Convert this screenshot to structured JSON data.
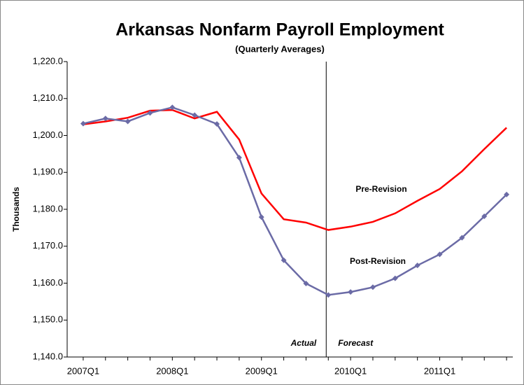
{
  "chart_data": {
    "type": "line",
    "title": "Arkansas Nonfarm Payroll Employment",
    "subtitle": "(Quarterly Averages)",
    "y_label": "Thousands",
    "categories": [
      "2007Q1",
      null,
      null,
      null,
      "2008Q1",
      null,
      null,
      null,
      "2009Q1",
      null,
      null,
      null,
      "2010Q1",
      null,
      null,
      null,
      "2011Q1",
      null,
      null,
      null
    ],
    "series": [
      {
        "name": "Pre-Revision",
        "color": "#ff0000",
        "marker": false,
        "values": [
          1203.0,
          1203.8,
          1204.8,
          1206.7,
          1206.9,
          1204.6,
          1206.4,
          1198.9,
          1184.3,
          1177.3,
          1176.4,
          1174.4,
          1175.3,
          1176.6,
          1178.9,
          1182.3,
          1185.5,
          1190.3,
          1196.3,
          1202.1
        ]
      },
      {
        "name": "Post-Revision",
        "color": "#6b6ba6",
        "marker": true,
        "values": [
          1203.2,
          1204.6,
          1203.8,
          1206.1,
          1207.6,
          1205.5,
          1203.1,
          1194.0,
          1177.9,
          1166.2,
          1159.9,
          1156.8,
          1157.6,
          1158.9,
          1161.3,
          1164.8,
          1167.8,
          1172.3,
          1178.1,
          1184.0
        ]
      }
    ],
    "divider_index": 11,
    "annotations": [
      "Actual",
      "Forecast"
    ],
    "ylim": [
      1140,
      1220
    ],
    "yticks": [
      {
        "value": 1140,
        "label": "1,140.0"
      },
      {
        "value": 1150,
        "label": "1,150.0"
      },
      {
        "value": 1160,
        "label": "1,160.0"
      },
      {
        "value": 1170,
        "label": "1,170.0"
      },
      {
        "value": 1180,
        "label": "1,180.0"
      },
      {
        "value": 1190,
        "label": "1,190.0"
      },
      {
        "value": 1200,
        "label": "1,200.0"
      },
      {
        "value": 1210,
        "label": "1,210.0"
      },
      {
        "value": 1220,
        "label": "1,220.0"
      }
    ],
    "grid": false
  }
}
